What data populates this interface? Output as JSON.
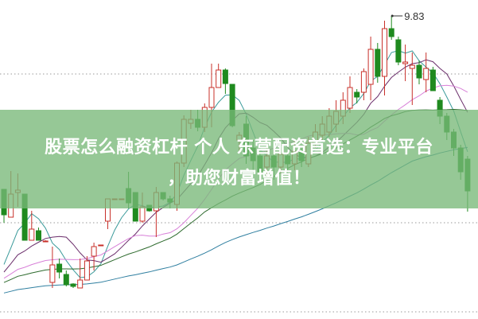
{
  "banner": {
    "line1": "股票怎么融资杠杆 个人 东营配资首选：专业平台",
    "line2": "，助您财富增值！"
  },
  "chart_data": {
    "type": "candlestick",
    "title": "",
    "annotations": [
      {
        "label": "9.83",
        "type": "high-marker"
      }
    ],
    "colors": {
      "up": "#c8302a",
      "down": "#1f8a1f",
      "ma5": "#3a9a9a",
      "ma10": "#6b2e6b",
      "ma20": "#d880d8",
      "ma30": "#2d6a2d",
      "ma60": "#2f7fa0",
      "grid": "#999999"
    },
    "grid": "dotted horizontal",
    "moving_averages": [
      5,
      10,
      20,
      30,
      60
    ],
    "candles": [
      [
        8.74,
        8.58,
        8.74,
        8.53
      ],
      [
        8.565,
        8.71,
        8.855,
        8.565
      ],
      [
        8.72,
        8.735,
        8.84,
        8.63
      ],
      [
        8.71,
        8.42,
        8.71,
        8.42
      ],
      [
        8.42,
        8.49,
        8.605,
        8.42
      ],
      [
        8.48,
        8.42,
        8.5,
        8.42
      ],
      [
        8.415,
        8.415,
        8.42,
        8.41
      ],
      [
        8.155,
        8.265,
        8.38,
        8.12
      ],
      [
        8.27,
        8.22,
        8.305,
        8.18
      ],
      [
        8.205,
        8.14,
        8.23,
        8.13
      ],
      [
        8.145,
        8.13,
        8.15,
        8.12
      ],
      [
        8.12,
        8.17,
        8.305,
        8.12
      ],
      [
        8.17,
        8.29,
        8.32,
        8.17
      ],
      [
        8.32,
        8.38,
        8.405,
        8.23
      ],
      [
        8.39,
        8.39,
        8.39,
        8.39
      ],
      [
        8.54,
        8.68,
        8.68,
        8.49
      ],
      [
        8.68,
        8.68,
        8.68,
        8.68
      ],
      [
        8.68,
        8.68,
        8.68,
        8.68
      ],
      [
        8.745,
        8.655,
        8.85,
        8.62
      ],
      [
        8.72,
        8.54,
        8.72,
        8.54
      ],
      [
        8.54,
        8.63,
        8.72,
        8.53
      ],
      [
        8.64,
        8.605,
        8.64,
        8.6
      ],
      [
        8.605,
        8.72,
        8.755,
        8.44
      ],
      [
        8.72,
        8.68,
        8.72,
        8.67
      ],
      [
        8.68,
        8.66,
        8.7,
        8.62
      ],
      [
        8.645,
        8.905,
        8.915,
        8.605
      ],
      [
        8.905,
        9.18,
        9.205,
        8.88
      ],
      [
        9.155,
        9.18,
        9.24,
        9.12
      ],
      [
        9.18,
        9.13,
        9.24,
        9.105
      ],
      [
        9.13,
        9.255,
        9.28,
        9.1
      ],
      [
        9.255,
        9.38,
        9.53,
        9.13
      ],
      [
        9.38,
        9.49,
        9.53,
        9.38
      ],
      [
        9.49,
        9.405,
        9.5,
        9.34
      ],
      [
        9.4,
        9.14,
        9.4,
        9.13
      ],
      [
        9.05,
        9.08,
        9.1,
        8.98
      ],
      [
        9.15,
        8.95,
        9.2,
        8.9
      ],
      [
        9.0,
        8.92,
        9.05,
        8.85
      ],
      [
        8.95,
        8.85,
        9.05,
        8.8
      ],
      [
        8.88,
        8.95,
        9.0,
        8.82
      ],
      [
        8.95,
        8.88,
        8.99,
        8.8
      ],
      [
        8.88,
        8.96,
        9.0,
        8.84
      ],
      [
        8.95,
        8.9,
        8.98,
        8.84
      ],
      [
        8.9,
        8.98,
        9.05,
        8.86
      ],
      [
        8.98,
        8.92,
        9.0,
        8.88
      ],
      [
        8.9,
        9.03,
        9.07,
        8.88
      ],
      [
        9.03,
        9.1,
        9.15,
        9.0
      ],
      [
        9.08,
        9.15,
        9.2,
        9.05
      ],
      [
        9.1,
        9.2,
        9.25,
        9.07
      ],
      [
        9.15,
        9.23,
        9.3,
        9.1
      ],
      [
        9.2,
        9.3,
        9.35,
        9.15
      ],
      [
        9.25,
        9.38,
        9.45,
        9.22
      ],
      [
        9.35,
        9.32,
        9.37,
        9.28
      ],
      [
        9.35,
        9.48,
        9.5,
        9.3
      ],
      [
        9.4,
        9.62,
        9.7,
        9.3
      ],
      [
        9.62,
        9.45,
        9.66,
        9.41
      ],
      [
        9.45,
        9.75,
        9.8,
        9.33
      ],
      [
        9.75,
        9.7,
        9.83,
        9.68
      ],
      [
        9.68,
        9.54,
        9.7,
        9.52
      ],
      [
        9.53,
        9.54,
        9.65,
        9.42
      ],
      [
        9.5,
        9.52,
        9.6,
        9.27
      ],
      [
        9.52,
        9.44,
        9.55,
        9.4
      ],
      [
        9.43,
        9.5,
        9.6,
        9.35
      ],
      [
        9.49,
        9.36,
        9.51,
        9.36
      ],
      [
        9.3,
        9.2,
        9.32,
        9.15
      ],
      [
        9.2,
        9.1,
        9.22,
        9.05
      ],
      [
        9.1,
        9.0,
        9.12,
        8.95
      ],
      [
        9.0,
        8.85,
        9.02,
        8.8
      ],
      [
        8.93,
        8.73,
        8.95,
        8.6
      ]
    ],
    "candle_format": [
      "open",
      "close",
      "high",
      "low"
    ]
  }
}
